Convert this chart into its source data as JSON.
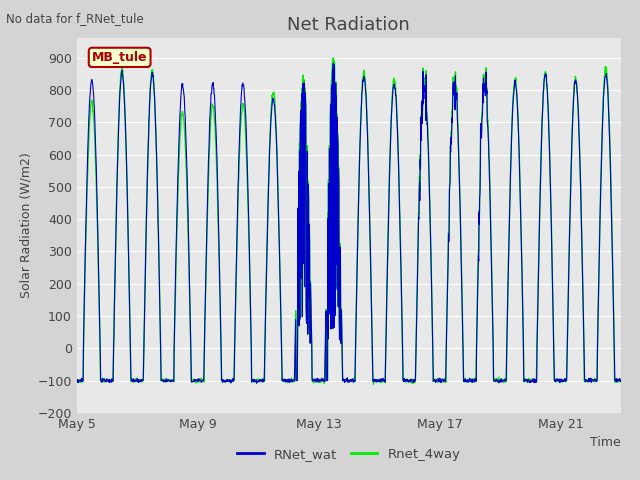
{
  "title": "Net Radiation",
  "top_left_text": "No data for f_RNet_tule",
  "ylabel": "Solar Radiation (W/m2)",
  "xlabel": "Time",
  "ylim": [
    -200,
    960
  ],
  "yticks": [
    -200,
    -100,
    0,
    100,
    200,
    300,
    400,
    500,
    600,
    700,
    800,
    900
  ],
  "xtick_positions": [
    0,
    4,
    8,
    12,
    16
  ],
  "xtick_labels": [
    "May 5",
    "May 9",
    "May 13",
    "May 17",
    "May 21"
  ],
  "fig_facecolor": "#d4d4d4",
  "plot_facecolor": "#e8e8e8",
  "grid_color": "#ffffff",
  "line1_color": "#0000cc",
  "line2_color": "#00ee00",
  "line1_label": "RNet_wat",
  "line2_label": "Rnet_4way",
  "legend_box_label": "MB_tule",
  "legend_box_facecolor": "#ffffcc",
  "legend_box_edgecolor": "#aa0000",
  "n_days": 18,
  "pts_per_day": 96,
  "night_value": -100,
  "title_fontsize": 13,
  "label_fontsize": 9,
  "tick_fontsize": 9
}
